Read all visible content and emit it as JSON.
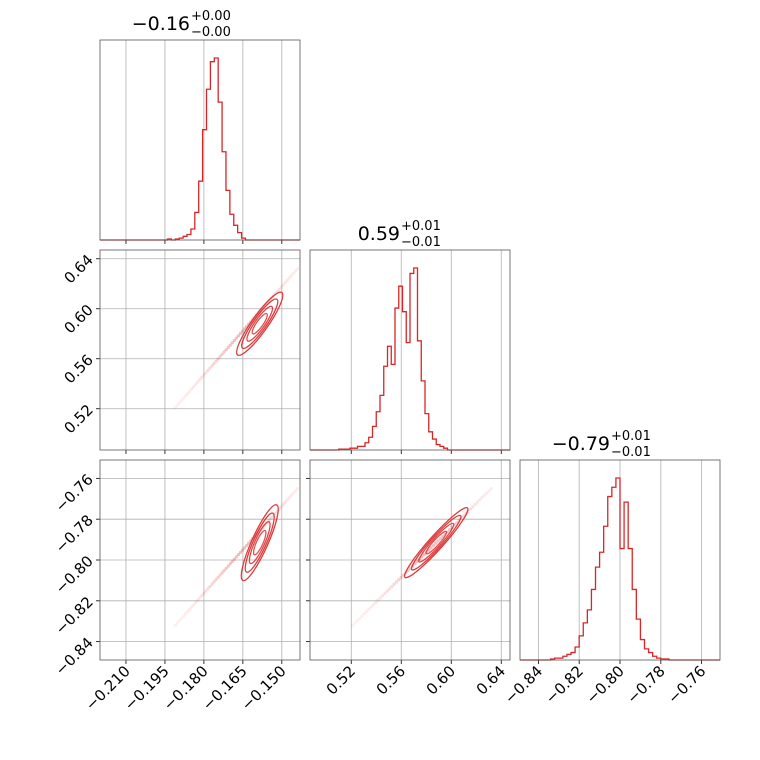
{
  "chart_data": {
    "type": "corner",
    "color": "#d62728",
    "grid": true,
    "parameters": [
      {
        "title": {
          "main": "−0.16",
          "plus": "+0.00",
          "minus": "−0.00"
        },
        "median": -0.16,
        "range": [
          -0.22,
          -0.143
        ],
        "ticks": [
          -0.21,
          -0.195,
          -0.18,
          -0.165,
          -0.15
        ],
        "tick_labels": [
          "−0.210",
          "−0.195",
          "−0.180",
          "−0.165",
          "−0.150"
        ],
        "hist": {
          "edges_start": -0.194,
          "bin_width": 0.0015,
          "counts": [
            0.005,
            0,
            0.005,
            0.01,
            0.02,
            0.03,
            0.06,
            0.15,
            0.32,
            0.6,
            0.82,
            0.97,
            0.99,
            0.75,
            0.48,
            0.27,
            0.14,
            0.08,
            0.04,
            0.01
          ]
        }
      },
      {
        "title": {
          "main": "0.59",
          "plus": "+0.01",
          "minus": "−0.01"
        },
        "median": 0.59,
        "range": [
          0.487,
          0.647
        ],
        "ticks": [
          0.52,
          0.56,
          0.6,
          0.64
        ],
        "tick_labels": [
          "0.52",
          "0.56",
          "0.60",
          "0.64"
        ],
        "hist": {
          "edges_start": 0.51,
          "bin_width": 0.003,
          "counts": [
            0.005,
            0.005,
            0.005,
            0.01,
            0.01,
            0.02,
            0.02,
            0.04,
            0.07,
            0.13,
            0.21,
            0.3,
            0.46,
            0.57,
            0.47,
            0.78,
            0.9,
            0.76,
            0.59,
            0.97,
            1.0,
            0.6,
            0.38,
            0.2,
            0.1,
            0.06,
            0.03,
            0.02,
            0.01
          ]
        }
      },
      {
        "title": {
          "main": "−0.79",
          "plus": "+0.01",
          "minus": "−0.01"
        },
        "median": -0.79,
        "range": [
          -0.849,
          -0.751
        ],
        "ticks": [
          -0.84,
          -0.82,
          -0.8,
          -0.78,
          -0.76
        ],
        "tick_labels": [
          "−0.84",
          "−0.82",
          "−0.80",
          "−0.78",
          "−0.76"
        ],
        "hist": {
          "edges_start": -0.834,
          "bin_width": 0.002,
          "counts": [
            0.005,
            0.01,
            0.01,
            0.02,
            0.03,
            0.04,
            0.07,
            0.13,
            0.2,
            0.27,
            0.38,
            0.5,
            0.58,
            0.72,
            0.88,
            0.93,
            0.98,
            0.6,
            0.85,
            0.6,
            0.38,
            0.22,
            0.11,
            0.06,
            0.04,
            0.02,
            0.01,
            0.005,
            0.005
          ]
        }
      }
    ],
    "correlations": [
      {
        "row": 1,
        "col": 0,
        "center": [
          -0.1585,
          0.588
        ],
        "axis_end": [
          -0.15,
          0.613
        ],
        "minor": 0.0012
      },
      {
        "row": 2,
        "col": 0,
        "center": [
          -0.1585,
          -0.7915
        ],
        "axis_end": [
          -0.152,
          -0.773
        ],
        "minor": 0.0012
      },
      {
        "row": 2,
        "col": 1,
        "center": [
          0.588,
          -0.7915
        ],
        "axis_end": [
          0.613,
          -0.7745
        ],
        "minor": 0.0016
      }
    ],
    "scatter_trend": [
      {
        "row": 1,
        "col": 0,
        "from": [
          -0.191,
          0.521
        ],
        "to": [
          -0.144,
          0.632
        ]
      },
      {
        "row": 2,
        "col": 0,
        "from": [
          -0.191,
          -0.832
        ],
        "to": [
          -0.144,
          -0.765
        ]
      },
      {
        "row": 2,
        "col": 1,
        "from": [
          0.521,
          -0.832
        ],
        "to": [
          0.632,
          -0.765
        ]
      }
    ]
  }
}
